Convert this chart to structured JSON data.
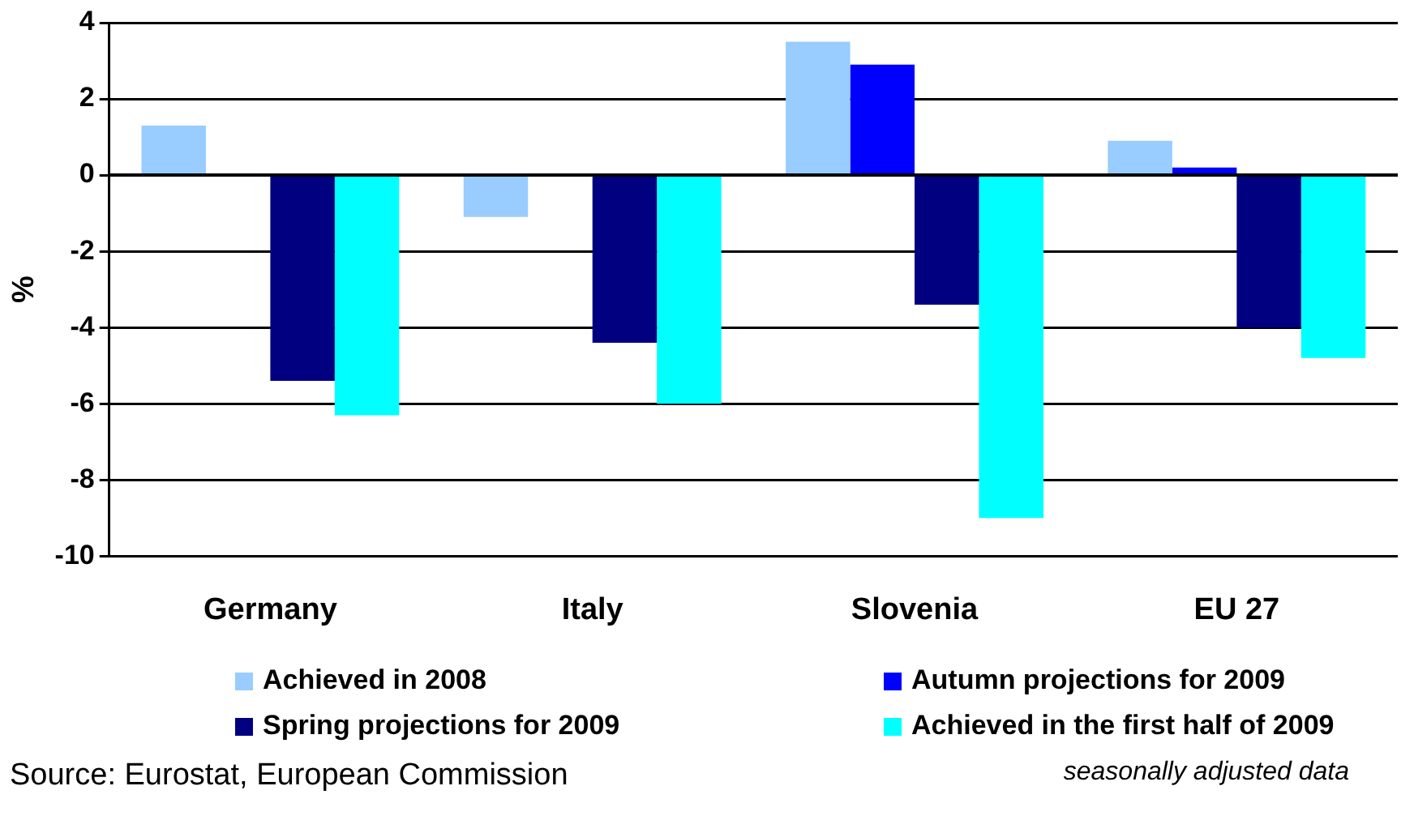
{
  "chart_data": {
    "type": "bar",
    "ylabel": "%",
    "categories": [
      "Germany",
      "Italy",
      "Slovenia",
      "EU 27"
    ],
    "series": [
      {
        "name": "Achieved in 2008",
        "color": "#99ccff",
        "values": [
          1.3,
          -1.1,
          3.5,
          0.9
        ]
      },
      {
        "name": "Autumn projections for 2009",
        "color": "#0000ff",
        "values": [
          null,
          null,
          2.9,
          0.2
        ]
      },
      {
        "name": "Spring projections for 2009",
        "color": "#000080",
        "values": [
          -5.4,
          -4.4,
          -3.4,
          -4.0
        ]
      },
      {
        "name": "Achieved in the first half of 2009",
        "color": "#00ffff",
        "values": [
          -6.3,
          -6.0,
          -9.0,
          -4.8
        ]
      }
    ],
    "ylim": [
      -10,
      4
    ],
    "yticks": [
      -10,
      -8,
      -6,
      -4,
      -2,
      0,
      2,
      4
    ],
    "grid": "y",
    "legend": "bottom",
    "annotations": [
      "Source: Eurostat, European Commission",
      "seasonally adjusted data"
    ]
  }
}
